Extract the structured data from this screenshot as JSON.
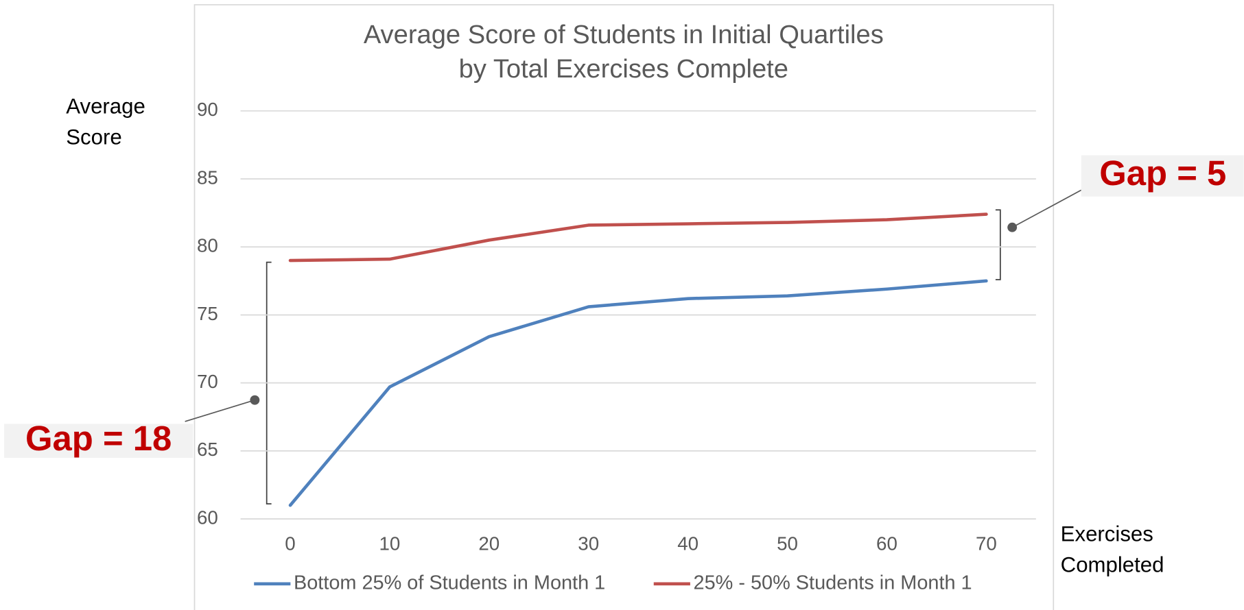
{
  "chart_data": {
    "type": "line",
    "title": [
      "Average Score of Students in Initial Quartiles",
      "by Total Exercises Complete"
    ],
    "y_label": [
      "Average",
      "Score"
    ],
    "x_label": [
      "Exercises",
      "Completed"
    ],
    "categories": [
      "0",
      "10",
      "20",
      "30",
      "40",
      "50",
      "60",
      "70"
    ],
    "series": [
      {
        "name": "Bottom 25% of Students in Month 1",
        "color": "#4f81bd",
        "values": [
          61.0,
          69.7,
          73.4,
          75.6,
          76.2,
          76.4,
          76.9,
          77.5
        ]
      },
      {
        "name": "25% - 50% Students in Month 1",
        "color": "#c0504d",
        "values": [
          79.0,
          79.1,
          80.5,
          81.6,
          81.7,
          81.8,
          82.0,
          82.4
        ]
      }
    ],
    "ylim": [
      60,
      90
    ],
    "yticks": [
      60,
      65,
      70,
      75,
      80,
      85,
      90
    ],
    "grid": true,
    "annotations": [
      "Gap = 18",
      "Gap = 5"
    ]
  }
}
